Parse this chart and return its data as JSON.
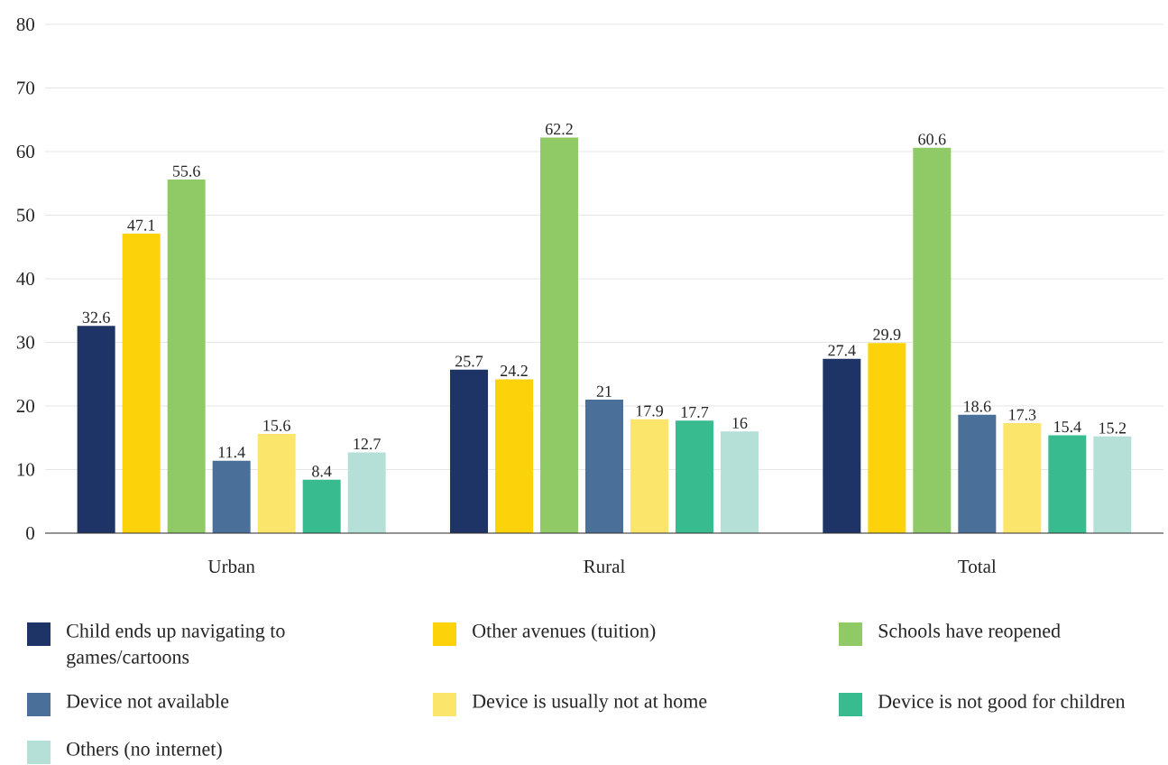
{
  "chart_data": {
    "type": "bar",
    "categories": [
      "Urban",
      "Rural",
      "Total"
    ],
    "series": [
      {
        "name": "Child ends up navigating to games/cartoons",
        "color": "#1f3466",
        "values": [
          32.6,
          25.7,
          27.4
        ]
      },
      {
        "name": "Other avenues (tuition)",
        "color": "#fcd20a",
        "values": [
          47.1,
          24.2,
          29.9
        ]
      },
      {
        "name": "Schools have reopened",
        "color": "#8fca67",
        "values": [
          55.6,
          62.2,
          60.6
        ]
      },
      {
        "name": "Device not available",
        "color": "#4a6f99",
        "values": [
          11.4,
          21,
          18.6
        ]
      },
      {
        "name": "Device is usually not at home",
        "color": "#fbe56b",
        "values": [
          15.6,
          17.9,
          17.3
        ]
      },
      {
        "name": "Device is not good for children",
        "color": "#37bb8f",
        "values": [
          8.4,
          17.7,
          15.4
        ]
      },
      {
        "name": "Others (no internet)",
        "color": "#b5e0d8",
        "values": [
          12.7,
          16,
          15.2
        ]
      }
    ],
    "ylim": [
      0,
      80
    ],
    "yticks": [
      0,
      10,
      20,
      30,
      40,
      50,
      60,
      70,
      80
    ],
    "grid": "y",
    "legend": "bottom",
    "data_labels": true
  }
}
